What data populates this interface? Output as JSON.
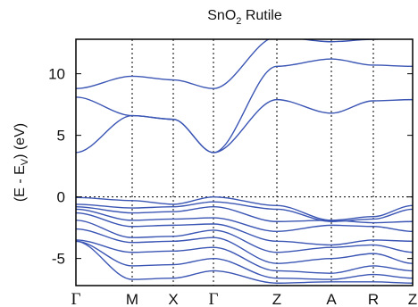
{
  "chart_data": {
    "type": "line",
    "title": {
      "main": "SnO",
      "sub": "2",
      "rest": " Rutile"
    },
    "ylabel": {
      "pre": "(E - E",
      "sub": "V",
      "post": ") (eV)"
    },
    "x_ticks": [
      "Γ",
      "M",
      "X",
      "Γ",
      "Z",
      "A",
      "R",
      "Z"
    ],
    "y_ticks": [
      -5,
      0,
      5,
      10
    ],
    "ylim": [
      -7.2,
      12.8
    ],
    "grid": "vertical dotted lines at high-symmetry points; horizontal dotted line at 0",
    "line_color": "#3a55b4",
    "bands": [
      [
        8.8,
        9.8,
        9.5,
        8.8,
        13.0,
        12.6,
        12.8,
        13.0
      ],
      [
        8.1,
        6.6,
        6.3,
        3.6,
        7.9,
        6.8,
        7.8,
        7.9
      ],
      [
        3.6,
        6.6,
        6.3,
        3.6,
        10.6,
        11.2,
        10.7,
        10.6
      ],
      [
        -0.05,
        -0.3,
        -0.6,
        0.0,
        -0.7,
        -1.9,
        -1.6,
        -0.7
      ],
      [
        -0.6,
        -0.9,
        -0.8,
        -0.4,
        -1.0,
        -2.0,
        -1.8,
        -1.0
      ],
      [
        -0.8,
        -1.3,
        -1.2,
        -0.8,
        -2.0,
        -1.9,
        -2.1,
        -2.0
      ],
      [
        -1.0,
        -1.9,
        -1.8,
        -1.7,
        -2.8,
        -2.3,
        -2.4,
        -2.8
      ],
      [
        -1.3,
        -2.4,
        -2.3,
        -2.2,
        -3.6,
        -3.9,
        -3.5,
        -3.6
      ],
      [
        -1.9,
        -3.3,
        -3.2,
        -2.7,
        -4.5,
        -4.1,
        -3.9,
        -4.5
      ],
      [
        -2.6,
        -3.7,
        -3.6,
        -3.3,
        -5.4,
        -5.0,
        -4.6,
        -5.4
      ],
      [
        -3.5,
        -4.5,
        -4.4,
        -4.1,
        -6.0,
        -6.2,
        -5.6,
        -6.0
      ],
      [
        -3.6,
        -5.6,
        -5.5,
        -5.0,
        -6.6,
        -6.7,
        -6.3,
        -6.6
      ],
      [
        -3.6,
        -6.7,
        -6.6,
        -6.0,
        -7.0,
        -6.9,
        -6.9,
        -7.0
      ]
    ]
  }
}
